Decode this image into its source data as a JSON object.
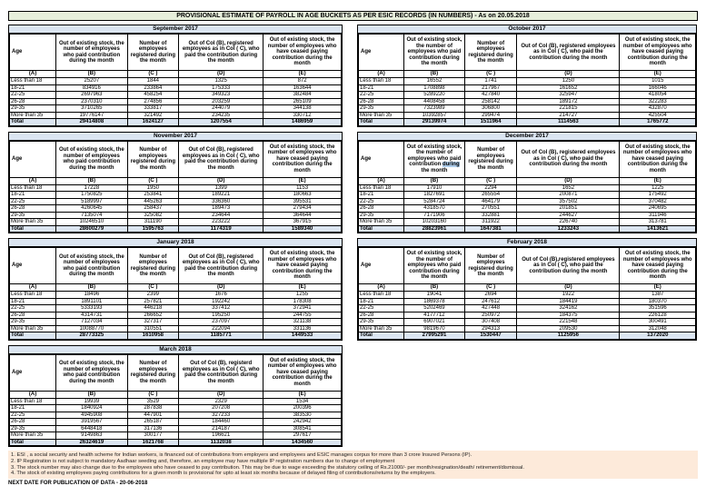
{
  "title": "PROVISIONAL ESTIMATE OF PAYROLL IN AGE BUCKETS AS PER ESIC RECORDS (IN NUMBERS) - As on 20.05.2018",
  "column_letters": [
    "(A)",
    "(B)",
    "(C )",
    "(D)",
    "(E)"
  ],
  "colors": {
    "title_bar_bg": "#e7efdb",
    "month_bar_bg": "#dbe5f1",
    "total_row_bg": "#dbe5f1",
    "notes_bg": "#fdeada",
    "selection_bg": "#aecdeb"
  },
  "tables": [
    {
      "month": "September 2017",
      "side": "left",
      "headers": {
        "age": "Age",
        "b": "Out of existing stock, the number of employees who paid contribution during the month",
        "c": "Number of employees registered during the month",
        "d": "Out of Col (B), registered employees as in Col ( C), who paid the contribution during the month",
        "e": "Out of existing stock, the number of employees who have ceased paying contribution during the month"
      },
      "rows": [
        [
          "Less than 18",
          "25207",
          "1844",
          "1325",
          "872"
        ],
        [
          "18-21",
          "834916",
          "233864",
          "175333",
          "163644"
        ],
        [
          "22-25",
          "2697963",
          "458254",
          "349323",
          "382484"
        ],
        [
          "26-28",
          "2370310",
          "274856",
          "203259",
          "265109"
        ],
        [
          "29-35",
          "3710265",
          "333817",
          "244079",
          "344138"
        ],
        [
          "More than 35",
          "19776147",
          "321492",
          "234235",
          "330712"
        ],
        [
          "Total",
          "29414808",
          "1624127",
          "1207554",
          "1486959"
        ]
      ]
    },
    {
      "month": "October 2017",
      "side": "right",
      "headers": {
        "age": "Age",
        "b": "Out of existing stock, the number of employees who paid contribution during the month",
        "c": "Number of employees registered during the month",
        "d": "Out of Col (B),  registered employees as in Col ( C), who paid the contribution during the month",
        "e": "Out of existing stock, the number of employees who have ceased paying contribution during the month"
      },
      "rows": [
        [
          "Less than 18",
          "16552",
          "1741",
          "1250",
          "1015"
        ],
        [
          "18-21",
          "1708898",
          "217967",
          "161652",
          "166046"
        ],
        [
          "22-25",
          "5289220",
          "427840",
          "325947",
          "418054"
        ],
        [
          "26-28",
          "4408458",
          "258142",
          "189172",
          "322283"
        ],
        [
          "29-35",
          "7323989",
          "306800",
          "221815",
          "432870"
        ],
        [
          "More than 35",
          "10392857",
          "299474",
          "214727",
          "425504"
        ],
        [
          "Total",
          "29139974",
          "1511964",
          "1114563",
          "1765772"
        ]
      ]
    },
    {
      "month": "November 2017",
      "side": "left",
      "headers": {
        "age": "Age",
        "b": "Out of existing stock, the number of employees who paid contribution during the month",
        "c": "Number of employees registered during the month",
        "d": "Out of Col (B), registered employees as in Col ( C), who paid the contribution during the month",
        "e": "Out of existing stock, the number of employees who have ceased paying contribution during the month"
      },
      "rows": [
        [
          "Less than 18",
          "17228",
          "1950",
          "1399",
          "1153"
        ],
        [
          "18-21",
          "1750825",
          "253841",
          "189221",
          "180663"
        ],
        [
          "22-25",
          "5189997",
          "445263",
          "336360",
          "395531"
        ],
        [
          "26-28",
          "4260645",
          "258437",
          "189473",
          "279434"
        ],
        [
          "29-35",
          "7135074",
          "325082",
          "234644",
          "364644"
        ],
        [
          "More than 35",
          "10246510",
          "311190",
          "223222",
          "367915"
        ],
        [
          "Total",
          "28600279",
          "1595763",
          "1174319",
          "1589340"
        ]
      ]
    },
    {
      "month": "December 2017",
      "side": "right",
      "headers": {
        "age": "Age",
        "b_segments": [
          {
            "text": "Out of existing stock, the number of employees who paid contribution "
          },
          {
            "text": "during",
            "highlight": true
          },
          {
            "text": " the month"
          }
        ],
        "c": "Number of employees registered during the month",
        "d": "Out of Col (B), registered employees as in Col ( C), who paid the contribution during the month",
        "e": "Out of existing stock, the number of employees who have ceased paying contribution during the month"
      },
      "rows": [
        [
          "Less than 18",
          "17910",
          "2294",
          "1652",
          "1225"
        ],
        [
          "18-21",
          "1827691",
          "265554",
          "200871",
          "175492"
        ],
        [
          "22-25",
          "5284724",
          "464179",
          "357502",
          "370482"
        ],
        [
          "26-28",
          "4318570",
          "270551",
          "201851",
          "240695"
        ],
        [
          "29-35",
          "7171906",
          "332881",
          "244627",
          "311946"
        ],
        [
          "More than 35",
          "10203160",
          "311922",
          "226740",
          "313781"
        ],
        [
          "Total",
          "28823961",
          "1647381",
          "1233243",
          "1413621"
        ]
      ]
    },
    {
      "month": "January 2018",
      "side": "left",
      "headers": {
        "age": "Age",
        "b": "Out of existing stock, the number of employees who paid contribution during the month",
        "c": "Number of employees registered during the month",
        "d": "Out of Col (B), registered employees as in Col ( C), who paid the contribution during the month",
        "e": "Out of existing stock, the number of employees who have ceased paying contribution during the month"
      },
      "rows": [
        [
          "Less than 18",
          "18496",
          "2399",
          "1676",
          "1255"
        ],
        [
          "18-21",
          "1891101",
          "257821",
          "192242",
          "178308"
        ],
        [
          "22-25",
          "5333193",
          "446218",
          "337412",
          "372941"
        ],
        [
          "26-28",
          "4314731",
          "266652",
          "195250",
          "244755"
        ],
        [
          "29-35",
          "7127034",
          "327317",
          "237097",
          "321138"
        ],
        [
          "More than 35",
          "10088770",
          "310551",
          "222094",
          "331136"
        ],
        [
          "Total",
          "28773325",
          "1610958",
          "1185771",
          "1449533"
        ]
      ]
    },
    {
      "month": "February 2018",
      "side": "right",
      "headers": {
        "age": "Age",
        "b": "Out of existing stock, the number of employees who paid contribution during the month",
        "c": "Number of employees registered during the month",
        "d": "Out of Col (B),registered employees as in Col ( C), who paid the contribution during the month",
        "e": "Out of existing stock, the number of employees who have ceased paying contribution during the month"
      },
      "rows": [
        [
          "Less than 18",
          "19041",
          "2694",
          "1922",
          "1387"
        ],
        [
          "18-21",
          "1869378",
          "247612",
          "184419",
          "180370"
        ],
        [
          "22-25",
          "5202469",
          "427448",
          "324162",
          "351596"
        ],
        [
          "26-28",
          "4177712",
          "250972",
          "184375",
          "226128"
        ],
        [
          "29-35",
          "6907021",
          "307408",
          "221548",
          "300491"
        ],
        [
          "More than 35",
          "9819670",
          "294313",
          "209530",
          "312048"
        ],
        [
          "Total",
          "27995291",
          "1530447",
          "1125956",
          "1372020"
        ]
      ]
    },
    {
      "month": "March 2018",
      "side": "left",
      "headers": {
        "age": "Age",
        "b": "Out of existing stock, the number of employees who paid contribution during the month",
        "c": "Number of employees registered during the month",
        "d": "Out of Col (B), registerd employees as in Col ( C), who paid the contribution during the month",
        "e": "Out of existing stock, the number of employees who have ceased paying contribution during the month"
      },
      "rows": [
        [
          "Less than 18",
          "19939",
          "3529",
          "2329",
          "1534"
        ],
        [
          "18-21",
          "1840924",
          "287838",
          "207208",
          "200396"
        ],
        [
          "22-25",
          "4945908",
          "447901",
          "327233",
          "383530"
        ],
        [
          "26-28",
          "3919567",
          "265187",
          "184460",
          "242942"
        ],
        [
          "29-35",
          "6448418",
          "317136",
          "214187",
          "308541"
        ],
        [
          "More than 35",
          "9149863",
          "300177",
          "196621",
          "297617"
        ],
        [
          "Total",
          "26324619",
          "1621768",
          "1132038",
          "1434560"
        ]
      ]
    }
  ],
  "notes": {
    "items": [
      "1. ESI , a social security and health scheme for Indian workers, is financed out of contributions from employers and employees and ESIC manages corpus for more than 3 crore Insured Persons (IP).",
      "2. IP Registration is not subject to mandatory Aadhaar seeding and, therefore, an employee may have multiple IP registration numbers due to change of employment",
      "3. The stock number may also change due to the employees who have ceased to pay contribution. This may  be due to wage exceeding the statutory ceiling of  Rs.21000/- per month/resignation/death/ retirement/dismissal.",
      "4. The stock of existing employees paying contributions for a given month is provisional for upto at least six months because of delayed filing of contributions/returns by the employers."
    ]
  },
  "next_date_label": "NEXT DATE FOR PUBLICATION OF DATA - 20-06-2018"
}
